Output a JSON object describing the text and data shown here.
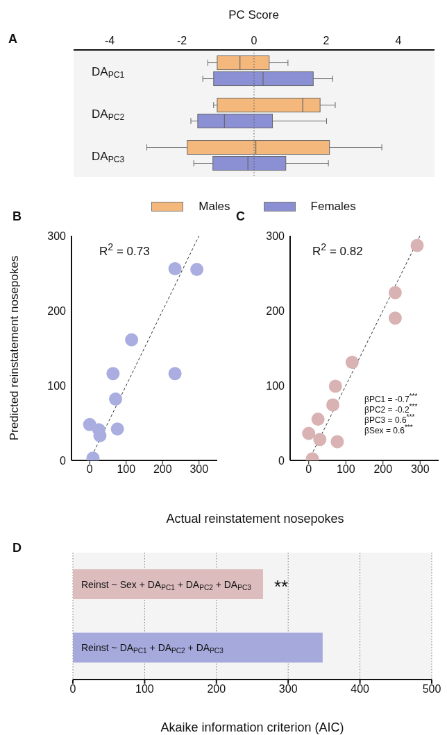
{
  "chart_data": [
    {
      "type": "box",
      "orientation": "horizontal",
      "xlabel": "PC Score",
      "categories": [
        "DA$_{PC1}$",
        "DA$_{PC2}$",
        "DA$_{PC3}$"
      ],
      "series": [
        {
          "name": "Males",
          "color": "#f4b87c",
          "boxes": [
            {
              "low": -1.28,
              "q1": -1.02,
              "median": -0.39,
              "q3": 0.42,
              "high": 0.94
            },
            {
              "low": -1.12,
              "q1": -1.02,
              "median": 1.35,
              "q3": 1.83,
              "high": 2.25
            },
            {
              "low": -2.97,
              "q1": -1.85,
              "median": 0.05,
              "q3": 2.09,
              "high": 3.54
            }
          ]
        },
        {
          "name": "Females",
          "color": "#8b8fd3",
          "boxes": [
            {
              "low": -1.42,
              "q1": -1.12,
              "median": 0.25,
              "q3": 1.64,
              "high": 2.18
            },
            {
              "low": -1.75,
              "q1": -1.56,
              "median": -0.82,
              "q3": 0.51,
              "high": 2.01
            },
            {
              "low": -1.67,
              "q1": -1.14,
              "median": -0.17,
              "q3": 0.88,
              "high": 2.06
            }
          ]
        }
      ],
      "xlim": [
        -5,
        5
      ],
      "xticks": [
        -4,
        -2,
        0,
        2,
        4
      ],
      "ref_lines": [
        {
          "axis": "x",
          "value": 0,
          "line_style": "dotted"
        }
      ],
      "legend": "bottom",
      "annotations": [
        "A"
      ]
    },
    {
      "type": "scatter",
      "xlabel": "Actual reinstatement nosepokes",
      "ylabel": "Predicted reinstatement nosepokes",
      "series": [
        {
          "color": "#a9addf",
          "marker": "circle",
          "x": [
            9,
            0,
            25,
            28,
            76,
            71,
            64,
            115,
            234,
            234,
            294
          ],
          "values": [
            3,
            48,
            41,
            33,
            42,
            82,
            116,
            161,
            116,
            256,
            255
          ]
        },
        {
          "type": "line",
          "color": "#333333",
          "marker": "none",
          "line_style": "dashed",
          "x": [
            0,
            300
          ],
          "values": [
            0,
            300
          ]
        }
      ],
      "xlim": [
        -50,
        350
      ],
      "xticks": [
        0,
        100,
        200,
        300
      ],
      "ylim": [
        0,
        300
      ],
      "yticks": [
        0,
        100,
        200,
        300
      ],
      "annotations": [
        "B",
        "R$^{2}$ = 0.73"
      ]
    },
    {
      "type": "scatter",
      "series": [
        {
          "color": "#d9b2b3",
          "marker": "circle",
          "x": [
            10,
            0,
            30,
            25,
            77,
            65,
            72,
            117,
            233,
            233,
            292
          ],
          "values": [
            2,
            36,
            28,
            55,
            25,
            74,
            99,
            131,
            190,
            224,
            287
          ]
        },
        {
          "type": "line",
          "color": "#333333",
          "marker": "none",
          "line_style": "dashed",
          "x": [
            0,
            300
          ],
          "values": [
            0,
            300
          ]
        }
      ],
      "xlim": [
        -50,
        350
      ],
      "xticks": [
        0,
        100,
        200,
        300
      ],
      "ylim": [
        0,
        300
      ],
      "yticks": [
        0,
        100,
        200,
        300
      ],
      "annotations": [
        "C",
        "R$^{2}$ = 0.82",
        "βPC1 = -0.7$^{***}$",
        "βPC2 = -0.2$^{***}$",
        "βPC3 = 0.6$^{***}$",
        "βSex = 0.6$^{***}$"
      ]
    },
    {
      "type": "bar",
      "orientation": "horizontal",
      "xlabel": "Akaike information criterion (AIC)",
      "categories": [
        "Reinst ~ Sex + DA$_{PC1}$ + DA$_{PC2}$ + DA$_{PC3}$",
        "Reinst ~ DA$_{PC1}$ + DA$_{PC2}$ + DA$_{PC3}$"
      ],
      "values": [
        265,
        348
      ],
      "colors": [
        "#dcbcbd",
        "#a5a9dc"
      ],
      "xlim": [
        0,
        500
      ],
      "xticks": [
        0,
        100,
        200,
        300,
        400,
        500
      ],
      "grid": "x",
      "annotations": [
        "D",
        "**"
      ]
    }
  ]
}
